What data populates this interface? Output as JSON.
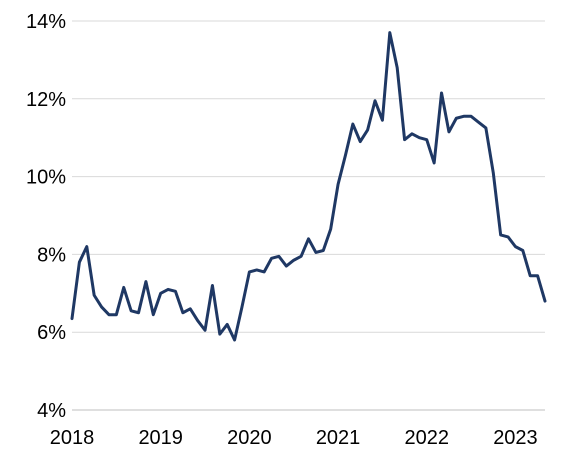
{
  "chart_data": {
    "type": "line",
    "title": "",
    "xlabel": "",
    "ylabel": "",
    "xlim": [
      "2018-01",
      "2023-05"
    ],
    "ylim": [
      4,
      14
    ],
    "grid": true,
    "y_ticks": [
      {
        "value": 4,
        "label": "4%"
      },
      {
        "value": 6,
        "label": "6%"
      },
      {
        "value": 8,
        "label": "8%"
      },
      {
        "value": 10,
        "label": "10%"
      },
      {
        "value": 12,
        "label": "12%"
      },
      {
        "value": 14,
        "label": "14%"
      }
    ],
    "x_ticks": [
      {
        "value": "2018-01",
        "label": "2018"
      },
      {
        "value": "2019-01",
        "label": "2019"
      },
      {
        "value": "2020-01",
        "label": "2020"
      },
      {
        "value": "2021-01",
        "label": "2021"
      },
      {
        "value": "2022-01",
        "label": "2022"
      },
      {
        "value": "2023-01",
        "label": "2023"
      }
    ],
    "series": [
      {
        "color": "#1f3864",
        "x": [
          "2018-01",
          "2018-02",
          "2018-03",
          "2018-04",
          "2018-05",
          "2018-06",
          "2018-07",
          "2018-08",
          "2018-09",
          "2018-10",
          "2018-11",
          "2018-12",
          "2019-01",
          "2019-02",
          "2019-03",
          "2019-04",
          "2019-05",
          "2019-06",
          "2019-07",
          "2019-08",
          "2019-09",
          "2019-10",
          "2019-11",
          "2019-12",
          "2020-01",
          "2020-02",
          "2020-03",
          "2020-04",
          "2020-05",
          "2020-06",
          "2020-07",
          "2020-08",
          "2020-09",
          "2020-10",
          "2020-11",
          "2020-12",
          "2021-01",
          "2021-02",
          "2021-03",
          "2021-04",
          "2021-05",
          "2021-06",
          "2021-07",
          "2021-08",
          "2021-09",
          "2021-10",
          "2021-11",
          "2021-12",
          "2022-01",
          "2022-02",
          "2022-03",
          "2022-04",
          "2022-05",
          "2022-06",
          "2022-07",
          "2022-08",
          "2022-09",
          "2022-10",
          "2022-11",
          "2022-12",
          "2023-01",
          "2023-02",
          "2023-03",
          "2023-04",
          "2023-05"
        ],
        "values": [
          6.35,
          7.8,
          8.2,
          6.95,
          6.65,
          6.45,
          6.45,
          7.15,
          6.55,
          6.5,
          7.3,
          6.45,
          7.0,
          7.1,
          7.05,
          6.5,
          6.6,
          6.3,
          6.05,
          7.2,
          5.95,
          6.2,
          5.8,
          6.65,
          7.55,
          7.6,
          7.55,
          7.9,
          7.95,
          7.7,
          7.85,
          7.95,
          8.4,
          8.05,
          8.1,
          8.65,
          9.8,
          10.55,
          11.35,
          10.9,
          11.2,
          11.95,
          11.45,
          13.7,
          12.8,
          10.95,
          11.1,
          11.0,
          10.95,
          10.35,
          12.15,
          11.15,
          11.5,
          11.55,
          11.55,
          11.4,
          11.25,
          10.1,
          8.5,
          8.45,
          8.2,
          8.1,
          7.45,
          7.45,
          6.8
        ]
      }
    ]
  }
}
